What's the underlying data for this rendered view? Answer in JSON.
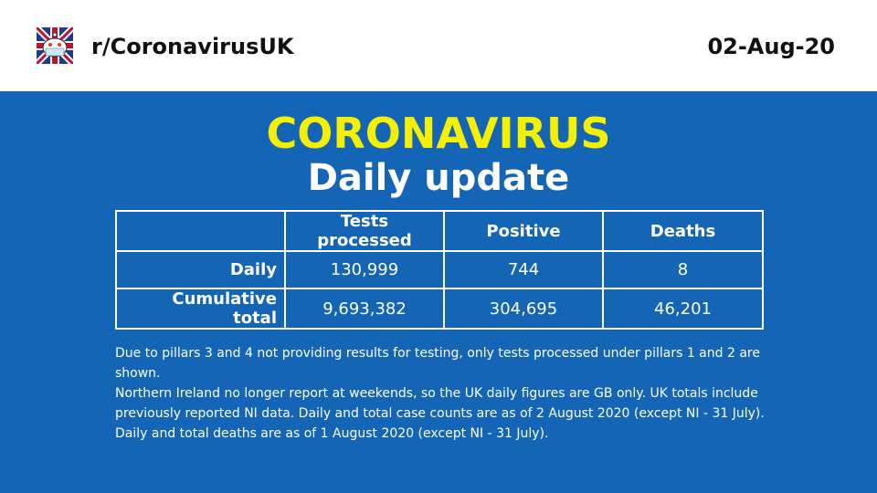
{
  "header": {
    "logo_icon": "masked-snoo-union-jack-icon",
    "subreddit": "r/CoronavirusUK",
    "date": "02-Aug-20"
  },
  "main": {
    "title": "CORONAVIRUS",
    "subtitle": "Daily update"
  },
  "table": {
    "columns": [
      "",
      "Tests processed",
      "Positive",
      "Deaths"
    ],
    "rows": [
      {
        "label": "Daily",
        "values": [
          "130,999",
          "744",
          "8"
        ]
      },
      {
        "label": "Cumulative total",
        "values": [
          "9,693,382",
          "304,695",
          "46,201"
        ]
      }
    ]
  },
  "notes": [
    "Due to pillars 3 and 4 not providing results for testing, only tests processed under pillars 1 and 2 are shown.",
    "Northern Ireland no longer report at weekends, so the UK daily figures are GB only. UK totals include previously reported NI data. Daily and total case counts are as of 2 August 2020 (except NI - 31 July). Daily and total deaths are as of 1 August 2020 (except NI - 31 July)."
  ],
  "colors": {
    "background": "#1565b7",
    "title": "#f5f000",
    "text": "#ffffff",
    "header_bg": "#ffffff"
  }
}
